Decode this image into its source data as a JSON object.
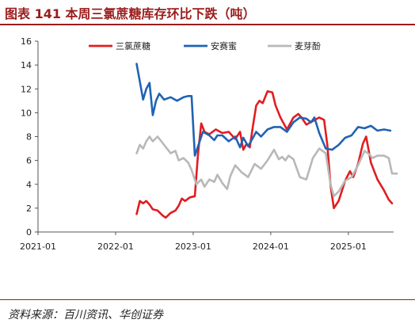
{
  "header": {
    "title": "图表 141   本周三氯蔗糖库存环比下跌（吨）"
  },
  "footer": {
    "source": "资料来源：百川资讯、华创证券"
  },
  "chart_data": {
    "type": "line",
    "title": "图表 141   本周三氯蔗糖库存环比下跌（吨）",
    "xlabel": "",
    "ylabel": "",
    "ylim": [
      0,
      16
    ],
    "yticks": [
      "0",
      "2",
      "4",
      "6",
      "8",
      "10",
      "12",
      "14",
      "16"
    ],
    "xlim": [
      "2021-01",
      "2025-08"
    ],
    "xticks": [
      "2021-01",
      "2022-01",
      "2023-01",
      "2024-01",
      "2025-01"
    ],
    "grid": false,
    "legend": "top",
    "colors": {
      "三氯蔗糖": "#e11d21",
      "安赛蜜": "#1f63b4",
      "麦芽酚": "#b8b8b8"
    },
    "series": [
      {
        "name": "三氯蔗糖",
        "points": [
          [
            "2022-04",
            1.5
          ],
          [
            "2022-04",
            2.6
          ],
          [
            "2022-05",
            2.4
          ],
          [
            "2022-05",
            2.6
          ],
          [
            "2022-06",
            2.3
          ],
          [
            "2022-06",
            1.9
          ],
          [
            "2022-07",
            1.8
          ],
          [
            "2022-08",
            1.4
          ],
          [
            "2022-08",
            1.2
          ],
          [
            "2022-09",
            1.6
          ],
          [
            "2022-10",
            1.8
          ],
          [
            "2022-10",
            2.2
          ],
          [
            "2022-11",
            2.8
          ],
          [
            "2022-11",
            2.6
          ],
          [
            "2022-12",
            2.9
          ],
          [
            "2023-01",
            3.0
          ],
          [
            "2023-01",
            6.6
          ],
          [
            "2023-02",
            9.1
          ],
          [
            "2023-02",
            8.4
          ],
          [
            "2023-03",
            8.2
          ],
          [
            "2023-04",
            8.6
          ],
          [
            "2023-05",
            8.3
          ],
          [
            "2023-06",
            8.4
          ],
          [
            "2023-07",
            7.8
          ],
          [
            "2023-08",
            8.4
          ],
          [
            "2023-08",
            6.9
          ],
          [
            "2023-09",
            7.4
          ],
          [
            "2023-09",
            7.1
          ],
          [
            "2023-10",
            8.9
          ],
          [
            "2023-10",
            10.6
          ],
          [
            "2023-11",
            11.0
          ],
          [
            "2023-11",
            10.8
          ],
          [
            "2023-12",
            11.8
          ],
          [
            "2024-01",
            11.7
          ],
          [
            "2024-01",
            10.6
          ],
          [
            "2024-02",
            9.6
          ],
          [
            "2024-03",
            8.6
          ],
          [
            "2024-04",
            9.6
          ],
          [
            "2024-05",
            9.9
          ],
          [
            "2024-05",
            9.6
          ],
          [
            "2024-06",
            9.0
          ],
          [
            "2024-07",
            9.3
          ],
          [
            "2024-08",
            9.6
          ],
          [
            "2024-09",
            9.4
          ],
          [
            "2024-09",
            7.3
          ],
          [
            "2024-10",
            3.9
          ],
          [
            "2024-10",
            2.0
          ],
          [
            "2024-11",
            2.6
          ],
          [
            "2024-12",
            4.3
          ],
          [
            "2025-01",
            5.1
          ],
          [
            "2025-01",
            4.6
          ],
          [
            "2025-02",
            5.7
          ],
          [
            "2025-03",
            7.4
          ],
          [
            "2025-03",
            8.0
          ],
          [
            "2025-04",
            5.8
          ],
          [
            "2025-05",
            4.4
          ],
          [
            "2025-06",
            3.5
          ],
          [
            "2025-07",
            2.7
          ],
          [
            "2025-07",
            2.4
          ]
        ]
      },
      {
        "name": "安赛蜜",
        "points": [
          [
            "2022-04",
            14.1
          ],
          [
            "2022-04",
            12.6
          ],
          [
            "2022-05",
            11.1
          ],
          [
            "2022-05",
            12.0
          ],
          [
            "2022-06",
            12.5
          ],
          [
            "2022-06",
            9.8
          ],
          [
            "2022-07",
            11.0
          ],
          [
            "2022-07",
            11.6
          ],
          [
            "2022-08",
            11.1
          ],
          [
            "2022-09",
            11.3
          ],
          [
            "2022-10",
            11.0
          ],
          [
            "2022-11",
            11.3
          ],
          [
            "2022-12",
            11.4
          ],
          [
            "2022-12",
            11.4
          ],
          [
            "2023-01",
            6.4
          ],
          [
            "2023-01",
            7.2
          ],
          [
            "2023-02",
            8.4
          ],
          [
            "2023-03",
            8.1
          ],
          [
            "2023-04",
            7.7
          ],
          [
            "2023-04",
            8.1
          ],
          [
            "2023-05",
            8.1
          ],
          [
            "2023-06",
            7.6
          ],
          [
            "2023-07",
            8.0
          ],
          [
            "2023-08",
            7.1
          ],
          [
            "2023-08",
            7.9
          ],
          [
            "2023-09",
            7.2
          ],
          [
            "2023-10",
            7.9
          ],
          [
            "2023-10",
            8.4
          ],
          [
            "2023-11",
            8.0
          ],
          [
            "2023-12",
            8.6
          ],
          [
            "2024-01",
            8.8
          ],
          [
            "2024-02",
            8.8
          ],
          [
            "2024-03",
            8.4
          ],
          [
            "2024-04",
            9.2
          ],
          [
            "2024-05",
            9.6
          ],
          [
            "2024-06",
            9.5
          ],
          [
            "2024-07",
            9.2
          ],
          [
            "2024-07",
            9.6
          ],
          [
            "2024-08",
            8.3
          ],
          [
            "2024-09",
            7.0
          ],
          [
            "2024-10",
            6.9
          ],
          [
            "2024-11",
            7.3
          ],
          [
            "2024-12",
            7.9
          ],
          [
            "2025-01",
            8.1
          ],
          [
            "2025-02",
            8.8
          ],
          [
            "2025-03",
            8.7
          ],
          [
            "2025-04",
            8.9
          ],
          [
            "2025-05",
            8.5
          ],
          [
            "2025-06",
            8.6
          ],
          [
            "2025-07",
            8.5
          ]
        ]
      },
      {
        "name": "麦芽酚",
        "points": [
          [
            "2022-04",
            6.6
          ],
          [
            "2022-04",
            7.3
          ],
          [
            "2022-05",
            7.0
          ],
          [
            "2022-05",
            7.6
          ],
          [
            "2022-06",
            8.0
          ],
          [
            "2022-06",
            7.6
          ],
          [
            "2022-07",
            8.0
          ],
          [
            "2022-08",
            7.3
          ],
          [
            "2022-09",
            6.6
          ],
          [
            "2022-10",
            6.8
          ],
          [
            "2022-10",
            6.0
          ],
          [
            "2022-11",
            6.2
          ],
          [
            "2022-12",
            5.8
          ],
          [
            "2022-12",
            5.2
          ],
          [
            "2023-01",
            4.0
          ],
          [
            "2023-02",
            4.4
          ],
          [
            "2023-02",
            3.8
          ],
          [
            "2023-03",
            4.4
          ],
          [
            "2023-04",
            4.2
          ],
          [
            "2023-04",
            4.8
          ],
          [
            "2023-05",
            4.1
          ],
          [
            "2023-06",
            3.6
          ],
          [
            "2023-06",
            4.7
          ],
          [
            "2023-07",
            5.6
          ],
          [
            "2023-08",
            5.0
          ],
          [
            "2023-09",
            4.6
          ],
          [
            "2023-10",
            5.7
          ],
          [
            "2023-11",
            5.3
          ],
          [
            "2023-12",
            6.0
          ],
          [
            "2024-01",
            6.9
          ],
          [
            "2024-02",
            6.1
          ],
          [
            "2024-02",
            6.3
          ],
          [
            "2024-03",
            6.0
          ],
          [
            "2024-03",
            6.4
          ],
          [
            "2024-04",
            6.1
          ],
          [
            "2024-05",
            4.6
          ],
          [
            "2024-06",
            4.4
          ],
          [
            "2024-07",
            6.2
          ],
          [
            "2024-08",
            7.0
          ],
          [
            "2024-09",
            6.6
          ],
          [
            "2024-10",
            4.0
          ],
          [
            "2024-10",
            3.0
          ],
          [
            "2024-11",
            3.4
          ],
          [
            "2024-12",
            4.3
          ],
          [
            "2025-01",
            4.6
          ],
          [
            "2025-02",
            5.6
          ],
          [
            "2025-03",
            6.8
          ],
          [
            "2025-04",
            6.5
          ],
          [
            "2025-04",
            6.2
          ],
          [
            "2025-05",
            6.4
          ],
          [
            "2025-06",
            6.4
          ],
          [
            "2025-07",
            6.2
          ],
          [
            "2025-07",
            4.9
          ],
          [
            "2025-08",
            4.9
          ]
        ]
      }
    ]
  }
}
